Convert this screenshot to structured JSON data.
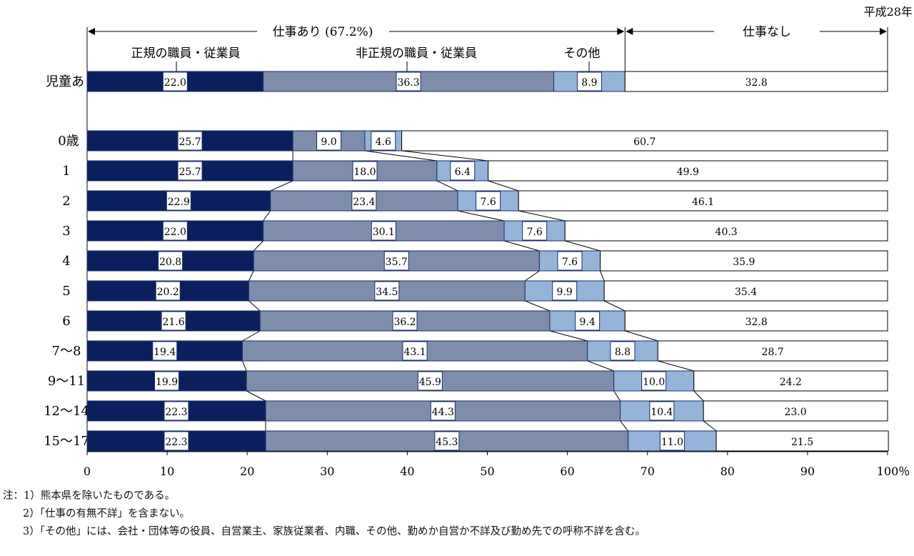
{
  "chart_data": {
    "type": "bar",
    "orientation": "horizontal-stacked-100",
    "year_label": "平成28年",
    "group_labels": {
      "employed": "仕事あり (67.2%)",
      "not_employed": "仕事なし"
    },
    "categories": [
      "児童あり",
      "0歳",
      "1",
      "2",
      "3",
      "4",
      "5",
      "6",
      "7～8",
      "9～11",
      "12～14",
      "15～17"
    ],
    "series": [
      {
        "name": "正規の職員・従業員",
        "color": "#0b1f5e",
        "values": [
          22.0,
          25.7,
          25.7,
          22.9,
          22.0,
          20.8,
          20.2,
          21.6,
          19.4,
          19.9,
          22.3,
          22.3
        ]
      },
      {
        "name": "非正規の職員・従業員",
        "color": "#7d8dab",
        "values": [
          36.3,
          9.0,
          18.0,
          23.4,
          30.1,
          35.7,
          34.5,
          36.2,
          43.1,
          45.9,
          44.3,
          45.3
        ]
      },
      {
        "name": "その他",
        "color": "#94b4da",
        "values": [
          8.9,
          4.6,
          6.4,
          7.6,
          7.6,
          7.6,
          9.9,
          9.4,
          8.8,
          10.0,
          10.4,
          11.0
        ]
      },
      {
        "name": "仕事なし",
        "color": "#ffffff",
        "values": [
          32.8,
          60.7,
          49.9,
          46.1,
          40.3,
          35.9,
          35.4,
          32.8,
          28.7,
          24.2,
          23.0,
          21.5
        ]
      }
    ],
    "xticks": [
      "0",
      "10",
      "20",
      "30",
      "40",
      "50",
      "60",
      "70",
      "80",
      "90",
      "100％"
    ],
    "xlim": [
      0,
      100
    ]
  },
  "notes": [
    "注：1）熊本県を除いたものである。",
    "2）「仕事の有無不詳」を含まない。",
    "3）「その他」には、会社・団体等の役員、自営業主、家族従業者、内職、その他、勤めか自営か不詳及び勤め先での呼称不詳を含む。"
  ]
}
